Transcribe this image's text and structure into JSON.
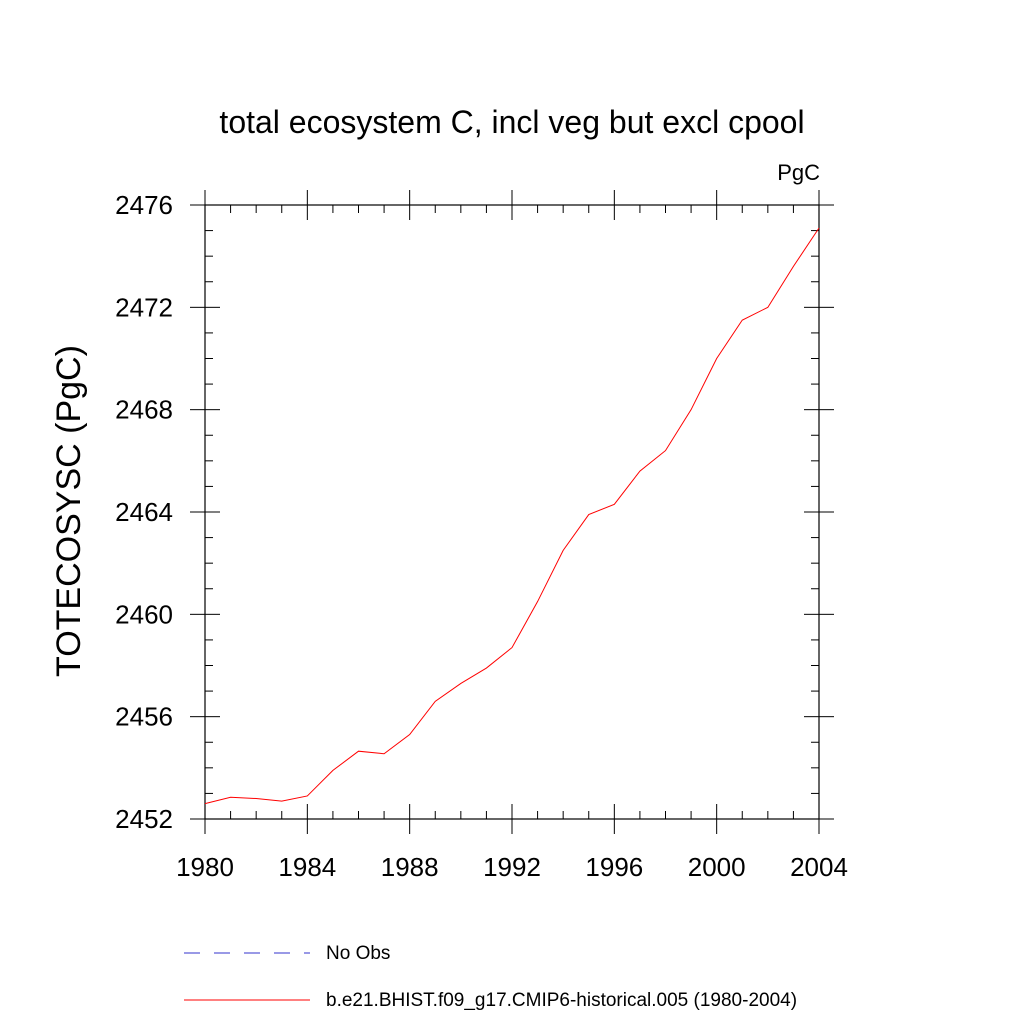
{
  "chart_data": {
    "type": "line",
    "title": "total ecosystem C, incl veg but excl cpool",
    "units": "PgC",
    "ylabel": "TOTECOSYSC  (PgC)",
    "xlabel": "",
    "xlim": [
      1980,
      2004
    ],
    "ylim": [
      2452,
      2476
    ],
    "xticks": [
      1980,
      1984,
      1988,
      1992,
      1996,
      2000,
      2004
    ],
    "yticks": [
      2452,
      2456,
      2460,
      2464,
      2468,
      2472,
      2476
    ],
    "grid": false,
    "legend_placement": "bottom",
    "series": [
      {
        "name": "b.e21.BHIST.f09_g17.CMIP6-historical.005 (1980-2004)",
        "color": "#ff0000",
        "dash": "solid",
        "x": [
          1980,
          1981,
          1982,
          1983,
          1984,
          1985,
          1986,
          1987,
          1988,
          1989,
          1990,
          1991,
          1992,
          1993,
          1994,
          1995,
          1996,
          1997,
          1998,
          1999,
          2000,
          2001,
          2002,
          2003,
          2004
        ],
        "y": [
          2452.6,
          2452.85,
          2452.8,
          2452.7,
          2452.9,
          2453.9,
          2454.65,
          2454.55,
          2455.3,
          2456.6,
          2457.3,
          2457.9,
          2458.7,
          2460.5,
          2462.5,
          2463.9,
          2464.3,
          2465.6,
          2466.4,
          2468.0,
          2470.0,
          2471.5,
          2472.0,
          2473.6,
          2475.1
        ]
      }
    ],
    "legend": [
      {
        "label": "No Obs",
        "color": "#3333cc",
        "dash": "dashed"
      },
      {
        "label": "b.e21.BHIST.f09_g17.CMIP6-historical.005 (1980-2004)",
        "color": "#ff0000",
        "dash": "solid"
      }
    ]
  }
}
